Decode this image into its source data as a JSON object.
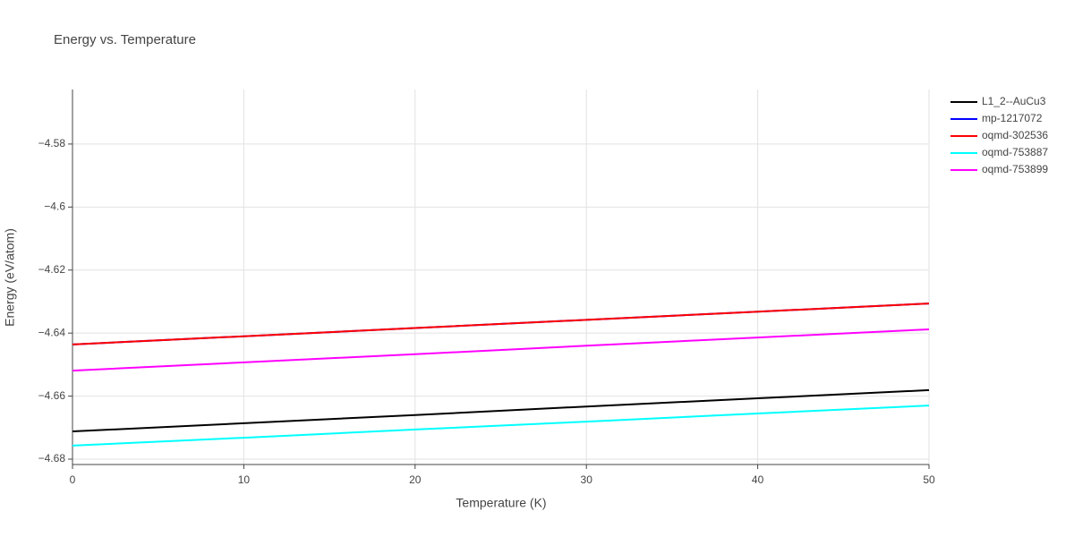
{
  "chart_data": {
    "type": "line",
    "title": "Energy vs. Temperature",
    "x_label": "Temperature (K)",
    "y_label": "Energy (eV/atom)",
    "x": [
      0,
      10,
      20,
      30,
      40,
      50
    ],
    "series": [
      {
        "name": "L1_2--AuCu3",
        "color": "#000000",
        "values": [
          -4.6712,
          -4.6686,
          -4.666,
          -4.6633,
          -4.6607,
          -4.6581
        ]
      },
      {
        "name": "mp-1217072",
        "color": "#0000ff",
        "values": [
          -4.6436,
          -4.641,
          -4.6384,
          -4.6358,
          -4.6332,
          -4.6306
        ]
      },
      {
        "name": "oqmd-302536",
        "color": "#ff0000",
        "values": [
          -4.6436,
          -4.641,
          -4.6384,
          -4.6358,
          -4.6332,
          -4.6306
        ]
      },
      {
        "name": "oqmd-753887",
        "color": "#00ffff",
        "values": [
          -4.6757,
          -4.6732,
          -4.6706,
          -4.6681,
          -4.6655,
          -4.663
        ]
      },
      {
        "name": "oqmd-753899",
        "color": "#ff00ff",
        "values": [
          -4.6519,
          -4.6493,
          -4.6467,
          -4.644,
          -4.6414,
          -4.6388
        ]
      }
    ],
    "xlim": [
      0,
      50
    ],
    "xticks": [
      0,
      10,
      20,
      30,
      40,
      50
    ],
    "ylim": [
      -4.6817,
      -4.5627
    ],
    "yticks": [
      {
        "value": -4.68,
        "label": "−4.68"
      },
      {
        "value": -4.66,
        "label": "−4.66"
      },
      {
        "value": -4.64,
        "label": "−4.64"
      },
      {
        "value": -4.62,
        "label": "−4.62"
      },
      {
        "value": -4.6,
        "label": "−4.6"
      },
      {
        "value": -4.58,
        "label": "−4.58"
      }
    ],
    "grid": true,
    "legend": "right"
  }
}
